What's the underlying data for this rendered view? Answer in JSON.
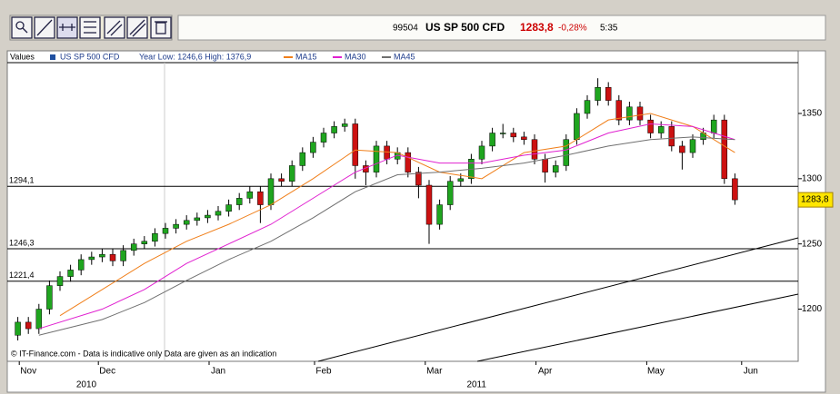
{
  "header": {
    "code": "99504",
    "name": "US SP 500 CFD",
    "price": "1283,8",
    "change": "-0,28%",
    "time": "5:35"
  },
  "chart_data": {
    "type": "candlestick",
    "legend_title": "Values",
    "name": "US SP 500 CFD",
    "range_note": "Year Low: 1246,6 High: 1376,9",
    "footnote": "© IT-Finance.com - Data is indicative only Data are given as an indication",
    "up_color": "#1fa51f",
    "down_color": "#cc1111",
    "x": [
      0,
      2,
      4,
      6,
      8,
      10,
      12,
      14,
      16,
      18,
      20,
      22,
      24,
      26,
      28,
      30,
      32,
      34,
      36,
      38,
      40,
      42,
      44,
      46,
      48,
      50,
      52,
      54,
      56,
      58,
      60,
      62,
      64,
      66,
      68,
      70,
      72,
      74,
      76,
      78,
      80,
      82,
      84,
      86,
      88,
      90,
      92,
      94,
      96,
      98,
      100,
      102,
      104,
      106,
      108,
      110,
      112,
      114,
      116,
      118,
      120,
      122,
      124,
      126,
      128,
      130,
      132,
      134,
      136
    ],
    "ohlc": [
      [
        1180,
        1194,
        1176,
        1190
      ],
      [
        1190,
        1194,
        1181,
        1185
      ],
      [
        1185,
        1204,
        1181,
        1200
      ],
      [
        1200,
        1222,
        1196,
        1218
      ],
      [
        1218,
        1229,
        1214,
        1225
      ],
      [
        1225,
        1234,
        1221,
        1230
      ],
      [
        1230,
        1242,
        1226,
        1238
      ],
      [
        1238,
        1244,
        1234,
        1240
      ],
      [
        1240,
        1246,
        1236,
        1242
      ],
      [
        1242,
        1246,
        1233,
        1237
      ],
      [
        1237,
        1249,
        1233,
        1245
      ],
      [
        1245,
        1254,
        1241,
        1250
      ],
      [
        1250,
        1256,
        1246,
        1252
      ],
      [
        1252,
        1262,
        1248,
        1258
      ],
      [
        1258,
        1266,
        1254,
        1262
      ],
      [
        1262,
        1269,
        1258,
        1265
      ],
      [
        1265,
        1272,
        1261,
        1268
      ],
      [
        1268,
        1274,
        1264,
        1270
      ],
      [
        1270,
        1276,
        1266,
        1272
      ],
      [
        1272,
        1279,
        1268,
        1275
      ],
      [
        1275,
        1284,
        1271,
        1280
      ],
      [
        1280,
        1289,
        1276,
        1285
      ],
      [
        1285,
        1294,
        1281,
        1290
      ],
      [
        1290,
        1294,
        1266,
        1280
      ],
      [
        1280,
        1304,
        1276,
        1300
      ],
      [
        1300,
        1304,
        1294,
        1298
      ],
      [
        1298,
        1314,
        1294,
        1310
      ],
      [
        1310,
        1324,
        1306,
        1320
      ],
      [
        1320,
        1332,
        1316,
        1328
      ],
      [
        1328,
        1339,
        1324,
        1335
      ],
      [
        1335,
        1344,
        1331,
        1340
      ],
      [
        1340,
        1346,
        1336,
        1342
      ],
      [
        1342,
        1346,
        1300,
        1310
      ],
      [
        1310,
        1314,
        1295,
        1305
      ],
      [
        1305,
        1329,
        1301,
        1325
      ],
      [
        1325,
        1329,
        1311,
        1315
      ],
      [
        1315,
        1324,
        1311,
        1320
      ],
      [
        1320,
        1324,
        1301,
        1305
      ],
      [
        1305,
        1309,
        1285,
        1295
      ],
      [
        1295,
        1299,
        1250,
        1265
      ],
      [
        1265,
        1284,
        1261,
        1280
      ],
      [
        1280,
        1302,
        1276,
        1298
      ],
      [
        1298,
        1304,
        1294,
        1300
      ],
      [
        1300,
        1319,
        1296,
        1315
      ],
      [
        1315,
        1329,
        1311,
        1325
      ],
      [
        1325,
        1339,
        1321,
        1335
      ],
      [
        1335,
        1342,
        1331,
        1335
      ],
      [
        1335,
        1339,
        1328,
        1332
      ],
      [
        1332,
        1336,
        1326,
        1330
      ],
      [
        1330,
        1334,
        1311,
        1315
      ],
      [
        1315,
        1319,
        1297,
        1305
      ],
      [
        1305,
        1314,
        1301,
        1310
      ],
      [
        1310,
        1334,
        1306,
        1330
      ],
      [
        1330,
        1354,
        1326,
        1350
      ],
      [
        1350,
        1364,
        1346,
        1360
      ],
      [
        1360,
        1377,
        1356,
        1370
      ],
      [
        1370,
        1374,
        1356,
        1360
      ],
      [
        1360,
        1364,
        1341,
        1345
      ],
      [
        1345,
        1359,
        1341,
        1355
      ],
      [
        1355,
        1359,
        1341,
        1345
      ],
      [
        1345,
        1349,
        1331,
        1335
      ],
      [
        1335,
        1344,
        1331,
        1340
      ],
      [
        1340,
        1344,
        1321,
        1325
      ],
      [
        1325,
        1329,
        1307,
        1320
      ],
      [
        1320,
        1334,
        1316,
        1330
      ],
      [
        1330,
        1339,
        1326,
        1335
      ],
      [
        1335,
        1349,
        1331,
        1345
      ],
      [
        1345,
        1349,
        1296,
        1300
      ],
      [
        1300,
        1304,
        1280,
        1283.8
      ]
    ],
    "series": [
      {
        "name": "MA15",
        "color": "#f07f1a",
        "x": [
          8,
          16,
          24,
          32,
          40,
          48,
          56,
          64,
          72,
          80,
          88,
          96,
          104,
          112,
          120,
          128,
          136
        ],
        "values": [
          1195,
          1215,
          1235,
          1252,
          1265,
          1280,
          1300,
          1322,
          1320,
          1305,
          1300,
          1320,
          1325,
          1345,
          1350,
          1340,
          1320
        ]
      },
      {
        "name": "MA30",
        "color": "#e020d0",
        "x": [
          4,
          16,
          24,
          32,
          40,
          48,
          56,
          64,
          72,
          80,
          88,
          96,
          104,
          112,
          120,
          128,
          136
        ],
        "values": [
          1185,
          1200,
          1215,
          1235,
          1250,
          1265,
          1285,
          1305,
          1318,
          1312,
          1312,
          1318,
          1322,
          1335,
          1342,
          1340,
          1330
        ]
      },
      {
        "name": "MA45",
        "color": "#707070",
        "x": [
          4,
          16,
          24,
          32,
          40,
          48,
          56,
          64,
          72,
          80,
          88,
          96,
          104,
          112,
          120,
          128,
          136
        ],
        "values": [
          1180,
          1192,
          1205,
          1222,
          1238,
          1252,
          1270,
          1290,
          1303,
          1305,
          1308,
          1312,
          1318,
          1325,
          1330,
          1332,
          1330
        ]
      }
    ],
    "levels": [
      {
        "value": 1294.1,
        "label": "1294,1"
      },
      {
        "value": 1246.3,
        "label": "1246,3"
      },
      {
        "value": 1221.4,
        "label": "1221,4"
      }
    ],
    "last": {
      "value": 1283.8,
      "label": "1283,8"
    },
    "xlim": [
      -2,
      148
    ],
    "xticks": [
      {
        "value": 2,
        "label": "Nov"
      },
      {
        "value": 17,
        "label": "Dec"
      },
      {
        "value": 38,
        "label": "Jan"
      },
      {
        "value": 58,
        "label": "Feb"
      },
      {
        "value": 79,
        "label": "Mar"
      },
      {
        "value": 100,
        "label": "Apr"
      },
      {
        "value": 121,
        "label": "May"
      },
      {
        "value": 139,
        "label": "Jun"
      }
    ],
    "year_labels": [
      {
        "value": 13,
        "label": "2010"
      },
      {
        "value": 87,
        "label": "2011"
      }
    ],
    "ylim": [
      1160,
      1398
    ],
    "yticks": [
      1200,
      1250,
      1300,
      1350
    ]
  }
}
